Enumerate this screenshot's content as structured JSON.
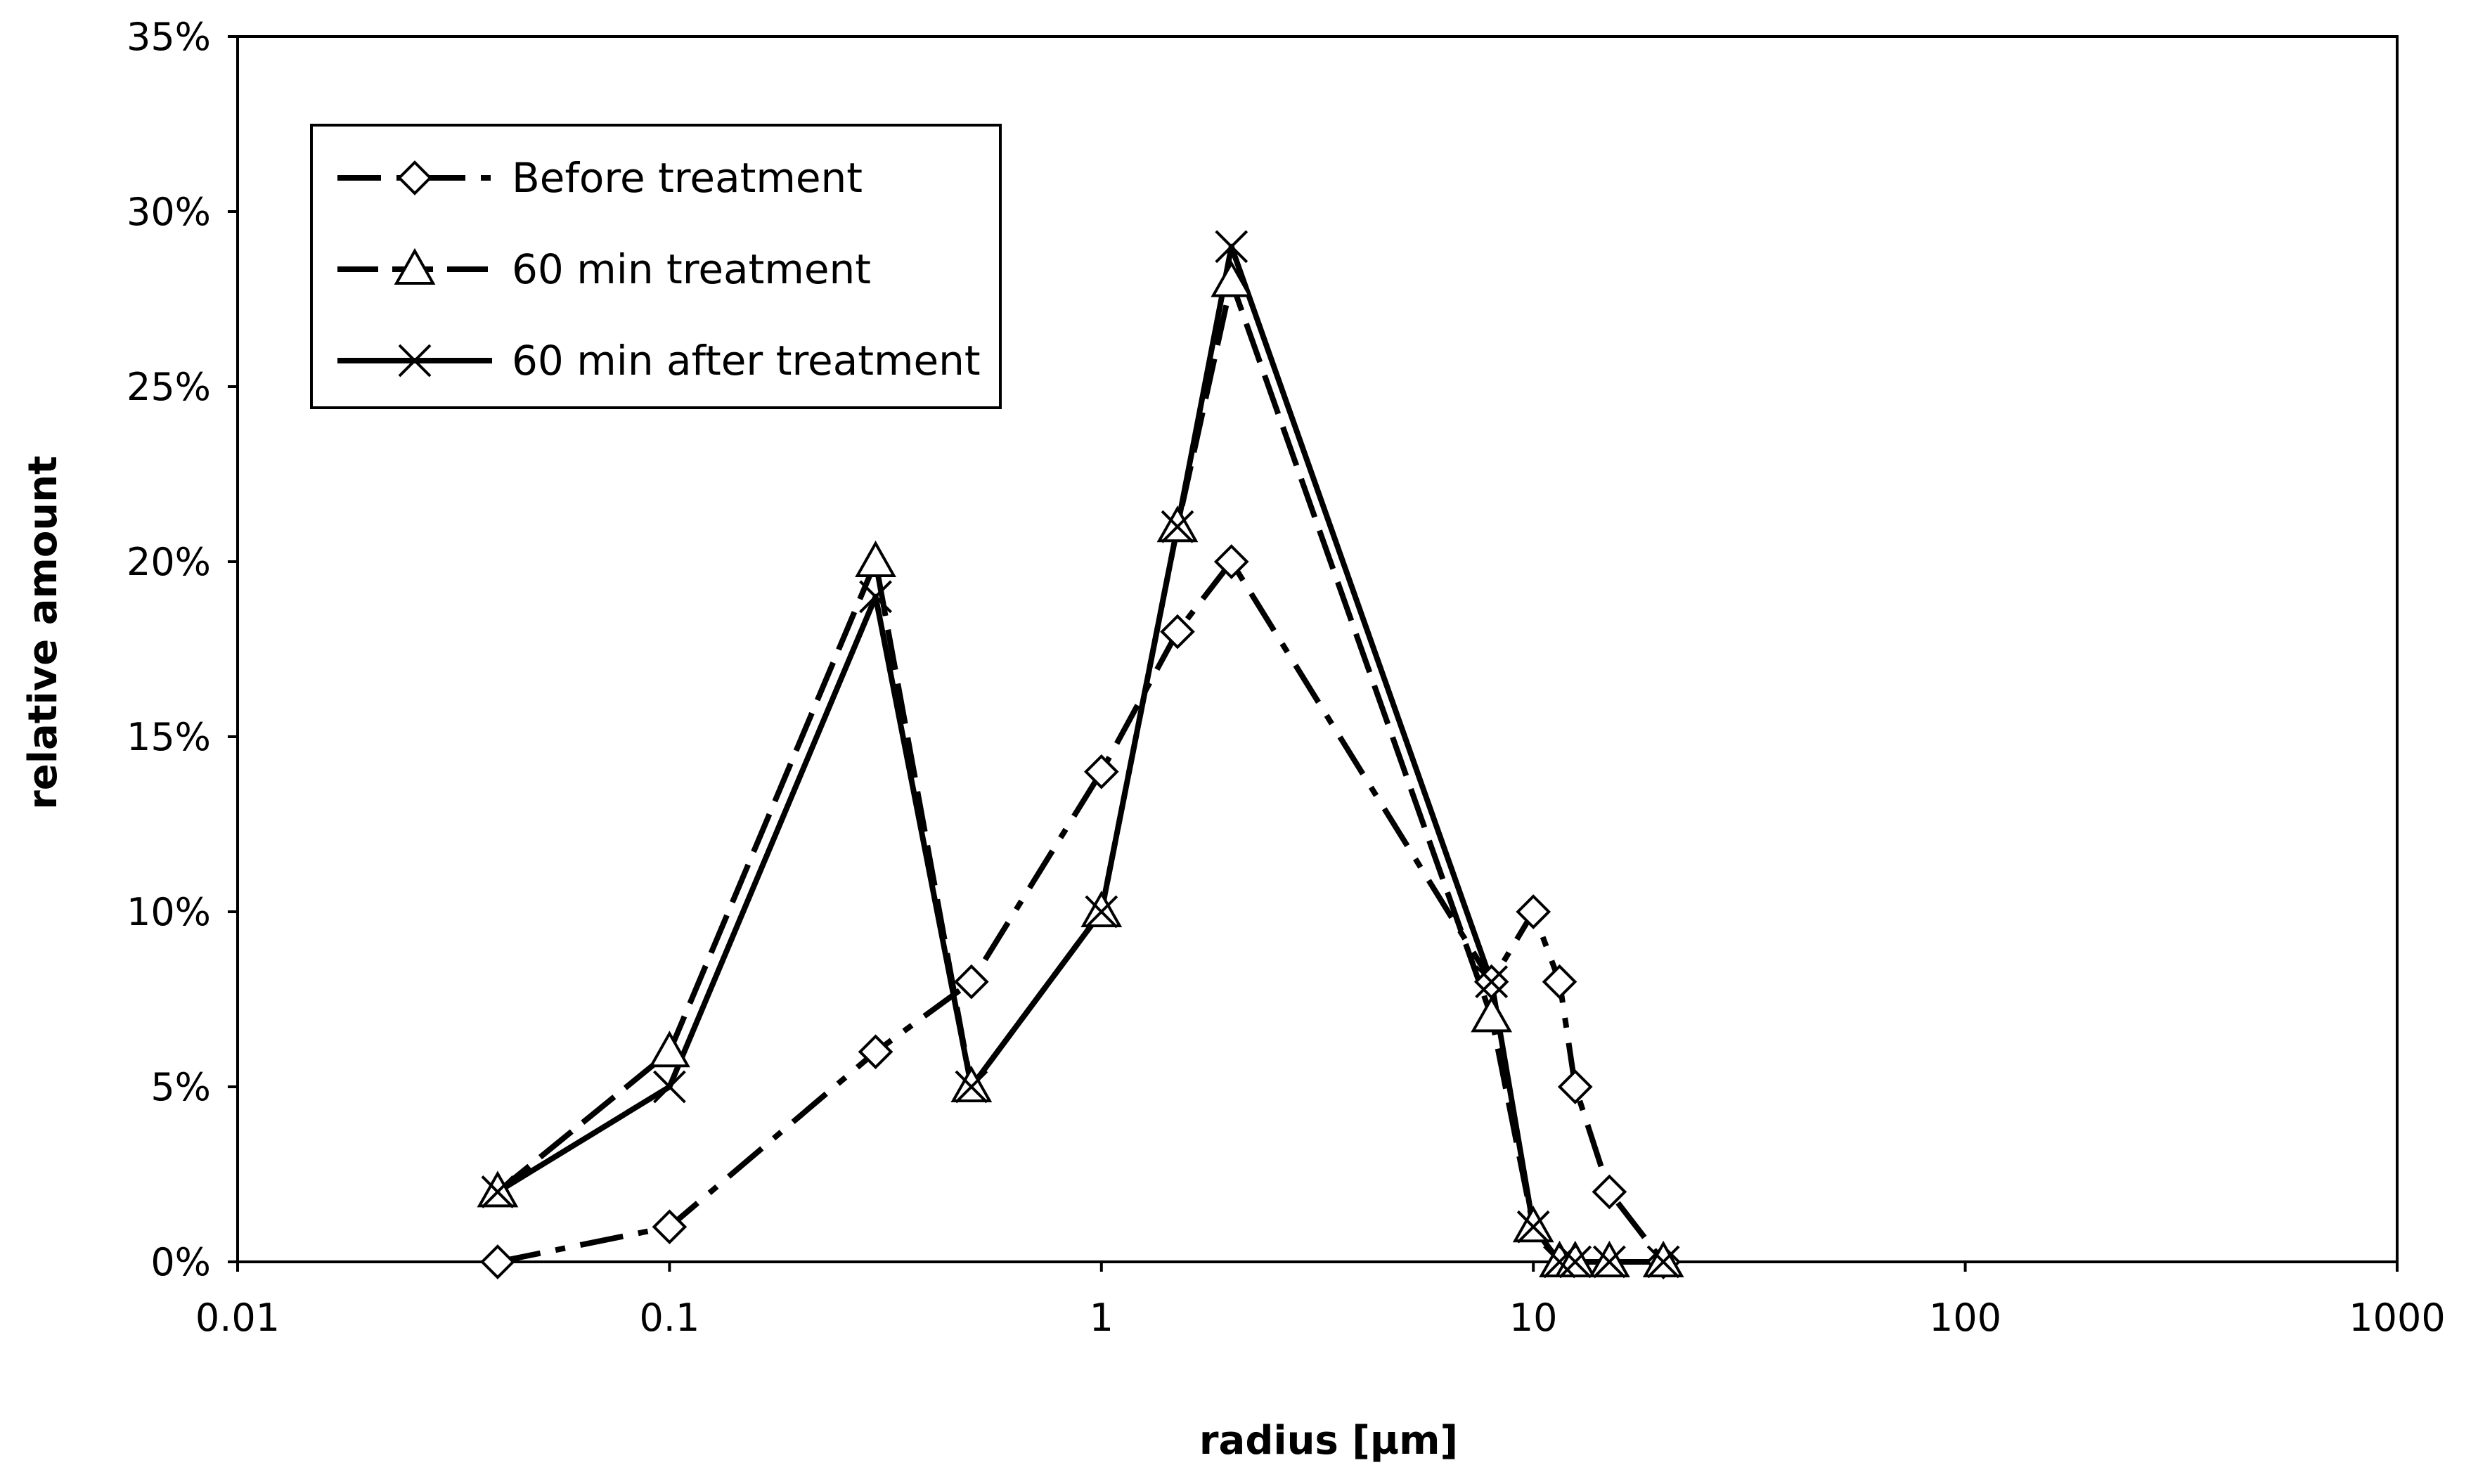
{
  "chart_data": {
    "type": "line",
    "xscale": "log",
    "xlabel": "radius [µm]",
    "ylabel": "relative amount",
    "xlim": [
      0.01,
      1000
    ],
    "ylim": [
      0,
      0.35
    ],
    "x_ticks": [
      0.01,
      0.1,
      1,
      10,
      100,
      1000
    ],
    "x_tick_labels": [
      "0.01",
      "0.1",
      "1",
      "10",
      "100",
      "1000"
    ],
    "y_ticks": [
      0,
      0.05,
      0.1,
      0.15,
      0.2,
      0.25,
      0.3,
      0.35
    ],
    "y_tick_labels": [
      "0%",
      "5%",
      "10%",
      "15%",
      "20%",
      "25%",
      "30%",
      "35%"
    ],
    "grid": false,
    "legend_position": "top-left",
    "series": [
      {
        "name": "Before treatment",
        "marker": "diamond",
        "line_style": "dash-dot",
        "x": [
          0.04,
          0.1,
          0.3,
          0.5,
          1,
          1.5,
          2,
          8,
          10,
          11.5,
          12.5,
          15,
          20
        ],
        "y": [
          0.0,
          0.01,
          0.06,
          0.08,
          0.14,
          0.18,
          0.2,
          0.08,
          0.1,
          0.08,
          0.05,
          0.02,
          0.0
        ]
      },
      {
        "name": "60 min treatment",
        "marker": "triangle",
        "line_style": "dash",
        "x": [
          0.04,
          0.1,
          0.3,
          0.5,
          1,
          1.5,
          2,
          8,
          10,
          11.5,
          12.5,
          15,
          20
        ],
        "y": [
          0.02,
          0.06,
          0.2,
          0.05,
          0.1,
          0.21,
          0.28,
          0.07,
          0.01,
          0.0,
          0.0,
          0.0,
          0.0
        ]
      },
      {
        "name": "60 min after treatment",
        "marker": "x",
        "line_style": "solid",
        "x": [
          0.04,
          0.1,
          0.3,
          0.5,
          1,
          1.5,
          2,
          8,
          10,
          11.5,
          12.5,
          15,
          20
        ],
        "y": [
          0.02,
          0.05,
          0.19,
          0.05,
          0.1,
          0.21,
          0.29,
          0.08,
          0.01,
          0.0,
          0.0,
          0.0,
          0.0
        ]
      }
    ]
  }
}
